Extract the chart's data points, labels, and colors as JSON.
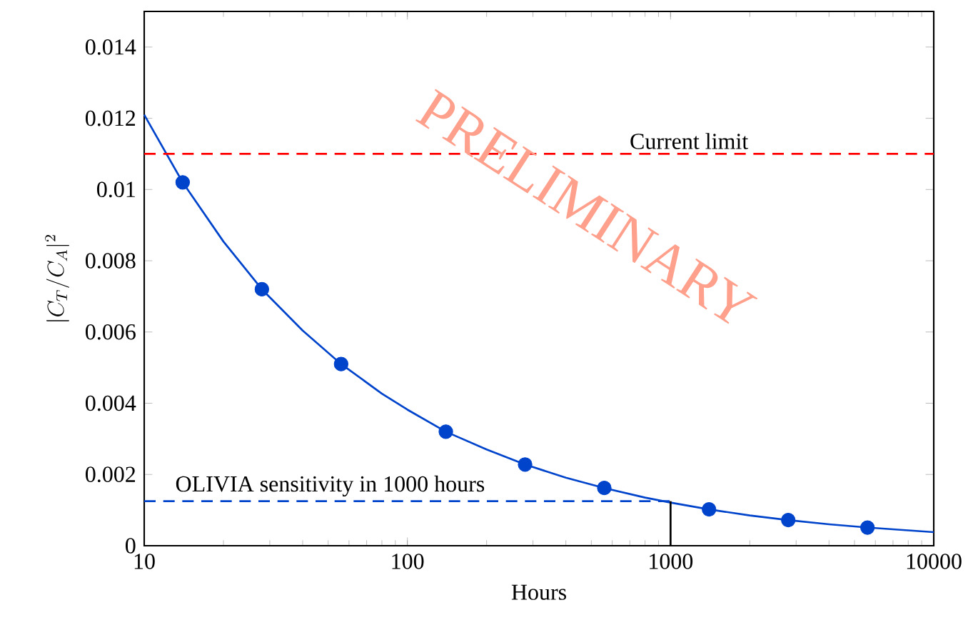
{
  "chart_data": {
    "type": "line",
    "xlabel": "Hours",
    "ylabel": "|C_T/C_A|^2",
    "log": "x",
    "grid": false,
    "legend": false,
    "xlim": [
      10,
      10000
    ],
    "ylim": [
      0,
      0.015
    ],
    "xticks": [
      10,
      100,
      1000,
      10000
    ],
    "yticks": [
      0,
      0.002,
      0.004,
      0.006,
      0.008,
      0.01,
      0.012,
      0.014
    ],
    "ref_lines": [
      {
        "axis": "y",
        "value": 0.011,
        "label": "Current limit",
        "color": "#ff0000",
        "line_style": "dashed"
      }
    ],
    "annotations": [
      "PRELIMINARY"
    ],
    "series": [
      {
        "color": "#0044cc",
        "marker": "none",
        "line_style": "solid",
        "x": [
          10,
          14,
          20,
          28,
          40,
          56,
          80,
          100,
          140,
          200,
          280,
          400,
          560,
          800,
          1000,
          1400,
          2000,
          2800,
          4000,
          5600,
          8000,
          10000
        ],
        "values": [
          0.0121,
          0.0102,
          0.00854,
          0.0072,
          0.00604,
          0.0051,
          0.00427,
          0.00382,
          0.0032,
          0.0027,
          0.00228,
          0.00191,
          0.00162,
          0.00135,
          0.00121,
          0.00102,
          0.00085,
          0.00072,
          0.0006,
          0.00051,
          0.00043,
          0.00038
        ]
      },
      {
        "type": "scatter",
        "color": "#0044cc",
        "marker": "circle",
        "x": [
          14,
          28,
          56,
          140,
          280,
          560,
          1400,
          2800,
          5600
        ],
        "values": [
          0.0102,
          0.0072,
          0.0051,
          0.0032,
          0.00228,
          0.00162,
          0.00102,
          0.00072,
          0.00051
        ]
      },
      {
        "name": "OLIVIA sensitivity in 1000 hours",
        "color": "#0044cc",
        "marker": "none",
        "line_style": "dashed",
        "x": [
          10,
          1000
        ],
        "values": [
          0.00125,
          0.00125
        ]
      },
      {
        "color": "#000000",
        "marker": "none",
        "line_style": "solid",
        "x": [
          1000,
          1000
        ],
        "values": [
          0,
          0.00125
        ]
      }
    ]
  }
}
